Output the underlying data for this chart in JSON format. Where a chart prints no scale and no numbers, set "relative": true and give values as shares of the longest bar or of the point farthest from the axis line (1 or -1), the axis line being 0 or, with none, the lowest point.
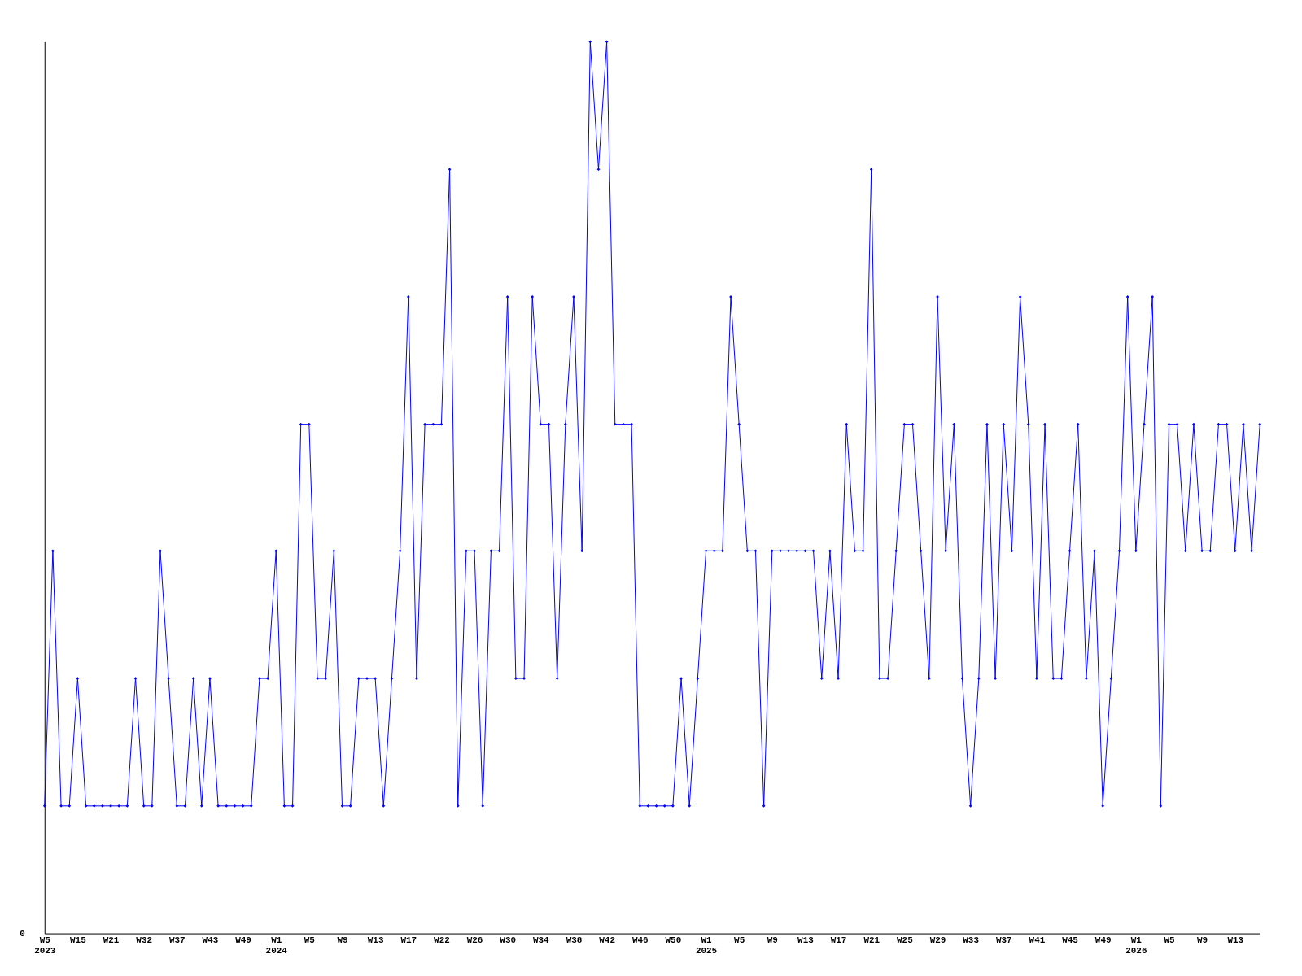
{
  "chart_data": {
    "type": "line",
    "relative": true,
    "annotations": [
      "0"
    ],
    "grid": false,
    "marker": "diamond",
    "line_style": "solid",
    "categories": [
      "W5\n2023",
      null,
      null,
      null,
      "W15",
      null,
      null,
      null,
      "W21",
      null,
      null,
      null,
      "W32",
      null,
      null,
      null,
      "W37",
      null,
      null,
      null,
      "W43",
      null,
      null,
      null,
      "W49",
      null,
      null,
      null,
      "W1\n2024",
      null,
      null,
      null,
      "W5",
      null,
      null,
      null,
      "W9",
      null,
      null,
      null,
      "W13",
      null,
      null,
      null,
      "W17",
      null,
      null,
      null,
      "W22",
      null,
      null,
      null,
      "W26",
      null,
      null,
      null,
      "W30",
      null,
      null,
      null,
      "W34",
      null,
      null,
      null,
      "W38",
      null,
      null,
      null,
      "W42",
      null,
      null,
      null,
      "W46",
      null,
      null,
      null,
      "W50",
      null,
      null,
      null,
      "W1\n2025",
      null,
      null,
      null,
      "W5",
      null,
      null,
      null,
      "W9",
      null,
      null,
      null,
      "W13",
      null,
      null,
      null,
      "W17",
      null,
      null,
      null,
      "W21",
      null,
      null,
      null,
      "W25",
      null,
      null,
      null,
      "W29",
      null,
      null,
      null,
      "W33",
      null,
      null,
      null,
      "W37",
      null,
      null,
      null,
      "W41",
      null,
      null,
      null,
      "W45",
      null,
      null,
      null,
      "W49",
      null,
      null,
      null,
      "W1\n2026",
      null,
      null,
      null,
      "W5",
      null,
      null,
      null,
      "W9",
      null,
      null,
      null,
      "W13",
      null,
      null,
      null
    ],
    "series": [
      {
        "color": "#0000ff",
        "values": [
          0.143,
          0.429,
          0.143,
          0.143,
          0.286,
          0.143,
          0.143,
          0.143,
          0.143,
          0.143,
          0.143,
          0.286,
          0.143,
          0.143,
          0.429,
          0.286,
          0.143,
          0.143,
          0.286,
          0.143,
          0.286,
          0.143,
          0.143,
          0.143,
          0.143,
          0.143,
          0.286,
          0.286,
          0.429,
          0.143,
          0.143,
          0.571,
          0.571,
          0.286,
          0.286,
          0.429,
          0.143,
          0.143,
          0.286,
          0.286,
          0.286,
          0.143,
          0.286,
          0.429,
          0.714,
          0.286,
          0.571,
          0.571,
          0.571,
          0.857,
          0.143,
          0.429,
          0.429,
          0.143,
          0.429,
          0.429,
          0.714,
          0.286,
          0.286,
          0.714,
          0.571,
          0.571,
          0.286,
          0.571,
          0.714,
          0.429,
          1,
          0.857,
          1,
          0.571,
          0.571,
          0.571,
          0.143,
          0.143,
          0.143,
          0.143,
          0.143,
          0.286,
          0.143,
          0.286,
          0.429,
          0.429,
          0.429,
          0.714,
          0.571,
          0.429,
          0.429,
          0.143,
          0.429,
          0.429,
          0.429,
          0.429,
          0.429,
          0.429,
          0.286,
          0.429,
          0.286,
          0.571,
          0.429,
          0.429,
          0.857,
          0.286,
          0.286,
          0.429,
          0.571,
          0.571,
          0.429,
          0.286,
          0.714,
          0.429,
          0.571,
          0.286,
          0.143,
          0.286,
          0.571,
          0.286,
          0.571,
          0.429,
          0.714,
          0.571,
          0.286,
          0.571,
          0.286,
          0.286,
          0.429,
          0.571,
          0.286,
          0.429,
          0.143,
          0.286,
          0.429,
          0.714,
          0.429,
          0.571,
          0.714,
          0.143,
          0.571,
          0.571,
          0.429,
          0.571,
          0.429,
          0.429,
          0.571,
          0.571,
          0.429,
          0.571,
          0.429,
          0.571
        ]
      }
    ]
  }
}
